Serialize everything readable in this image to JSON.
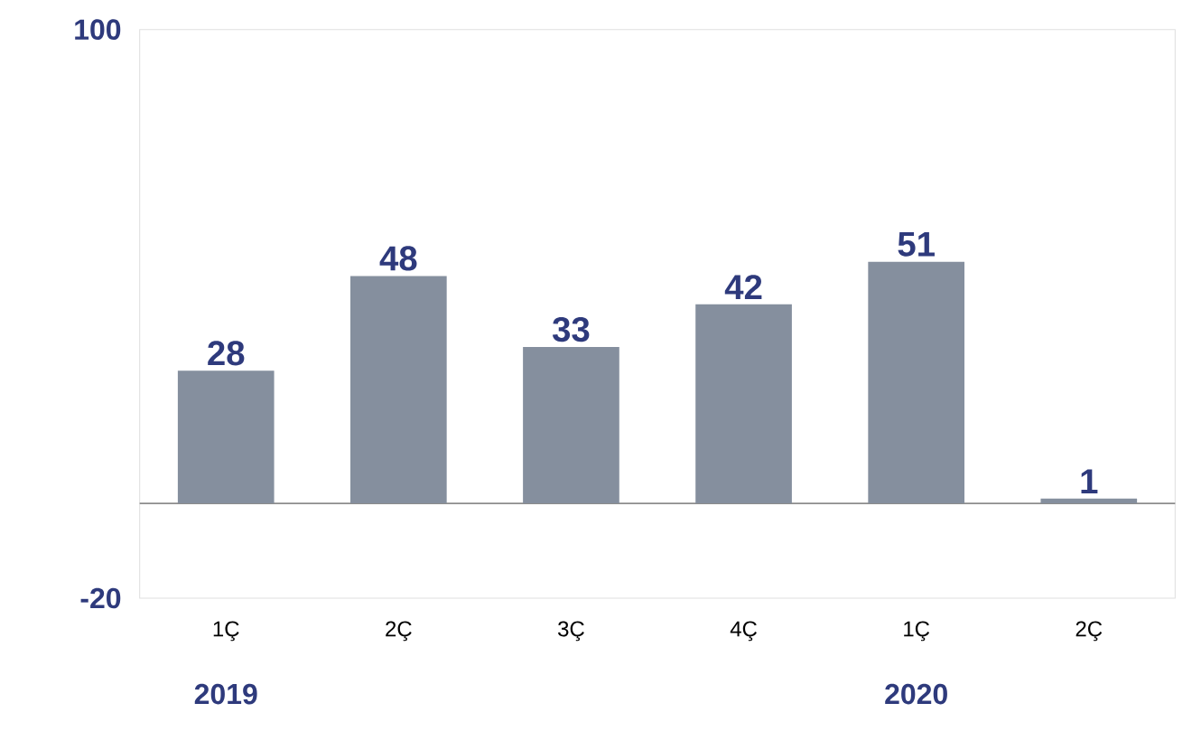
{
  "chart_data": {
    "type": "bar",
    "categories": [
      "1Ç",
      "2Ç",
      "3Ç",
      "4Ç",
      "1Ç",
      "2Ç"
    ],
    "values": [
      28,
      48,
      33,
      42,
      51,
      1
    ],
    "color": "#858f9e",
    "ylim": [
      -20,
      100
    ],
    "yticks": [
      -20,
      100
    ],
    "data_labels": true,
    "annotations": [
      "2019",
      "2020"
    ]
  }
}
